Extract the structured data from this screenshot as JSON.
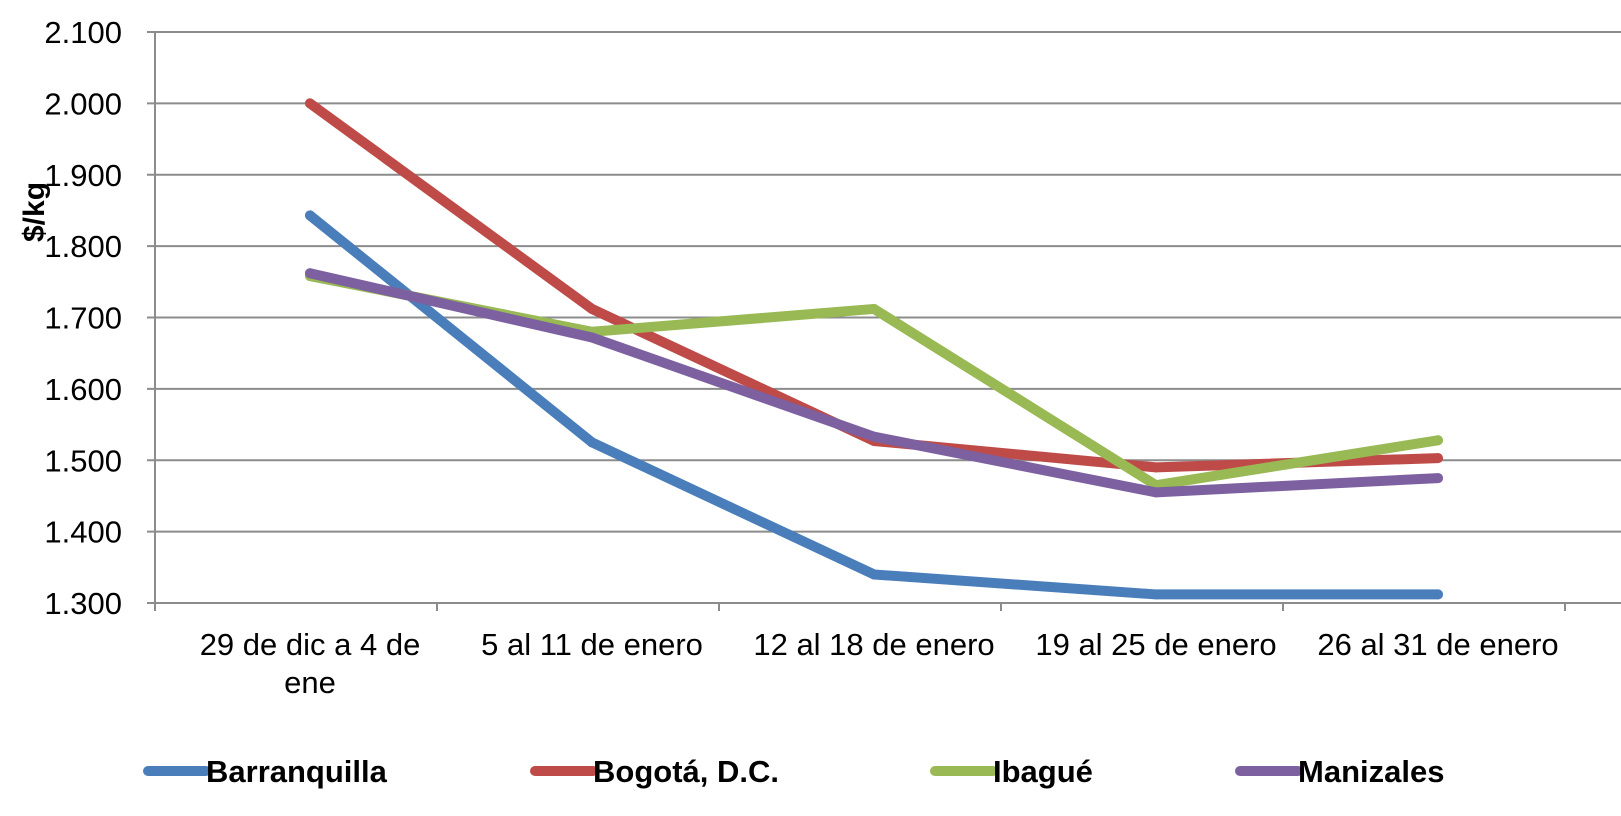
{
  "chart_data": {
    "type": "line",
    "title": "",
    "xlabel": "",
    "ylabel": "$/kg",
    "ylim": [
      1300,
      2100
    ],
    "y_ticks": [
      {
        "value": 1300,
        "label": "1.300"
      },
      {
        "value": 1400,
        "label": "1.400"
      },
      {
        "value": 1500,
        "label": "1.500"
      },
      {
        "value": 1600,
        "label": "1.600"
      },
      {
        "value": 1700,
        "label": "1.700"
      },
      {
        "value": 1800,
        "label": "1.800"
      },
      {
        "value": 1900,
        "label": "1.900"
      },
      {
        "value": 2000,
        "label": "2.000"
      },
      {
        "value": 2100,
        "label": "2.100"
      }
    ],
    "categories": [
      [
        "29 de dic a 4 de",
        "ene"
      ],
      [
        "5 al 11 de enero"
      ],
      [
        "12 al 18 de enero"
      ],
      [
        "19 al 25 de enero"
      ],
      [
        "26 al 31 de enero"
      ]
    ],
    "grid": true,
    "legend_position": "bottom",
    "series": [
      {
        "name": "Barranquilla",
        "color": "#4a7ebb",
        "values": [
          1843,
          1525,
          1340,
          1312,
          1312
        ]
      },
      {
        "name": "Bogotá, D.C.",
        "color": "#be4b48",
        "values": [
          2000,
          1712,
          1527,
          1490,
          1503
        ]
      },
      {
        "name": "Ibagué",
        "color": "#98b954",
        "values": [
          1758,
          1680,
          1712,
          1465,
          1528
        ]
      },
      {
        "name": "Manizales",
        "color": "#7d60a0",
        "values": [
          1762,
          1672,
          1533,
          1455,
          1475
        ]
      }
    ]
  }
}
